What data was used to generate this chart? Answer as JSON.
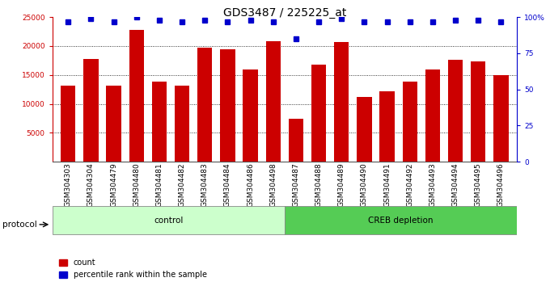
{
  "title": "GDS3487 / 225225_at",
  "samples": [
    "GSM304303",
    "GSM304304",
    "GSM304479",
    "GSM304480",
    "GSM304481",
    "GSM304482",
    "GSM304483",
    "GSM304484",
    "GSM304486",
    "GSM304498",
    "GSM304487",
    "GSM304488",
    "GSM304489",
    "GSM304490",
    "GSM304491",
    "GSM304492",
    "GSM304493",
    "GSM304494",
    "GSM304495",
    "GSM304496"
  ],
  "counts": [
    13100,
    17800,
    13200,
    22800,
    13800,
    13100,
    19700,
    19400,
    15900,
    20900,
    7400,
    16800,
    20700,
    11200,
    12100,
    13800,
    15900,
    17600,
    17400,
    15000
  ],
  "percentiles": [
    97,
    99,
    97,
    100,
    98,
    97,
    98,
    97,
    98,
    97,
    85,
    97,
    99,
    97,
    97,
    97,
    97,
    98,
    98,
    97
  ],
  "control_count": 10,
  "bar_color": "#cc0000",
  "dot_color": "#0000cc",
  "ylim_left": [
    0,
    25000
  ],
  "ylim_right": [
    0,
    100
  ],
  "yticks_left": [
    5000,
    10000,
    15000,
    20000,
    25000
  ],
  "yticks_right": [
    0,
    25,
    50,
    75,
    100
  ],
  "bg_color": "#ffffff",
  "title_fontsize": 10,
  "tick_fontsize": 6.5,
  "label_fontsize": 7.5,
  "control_color": "#ccffcc",
  "creb_color": "#55cc55",
  "protocol_label": "protocol"
}
